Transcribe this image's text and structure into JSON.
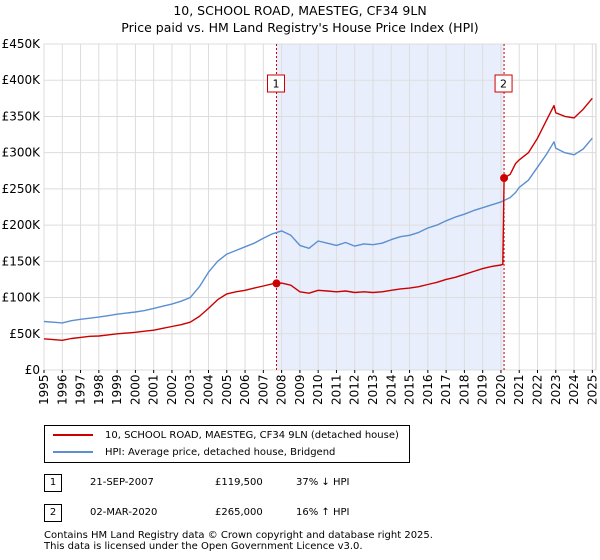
{
  "title": {
    "line1": "10, SCHOOL ROAD, MAESTEG, CF34 9LN",
    "line2": "Price paid vs. HM Land Registry's House Price Index (HPI)"
  },
  "chart_data": {
    "type": "line",
    "title": "10, SCHOOL ROAD, MAESTEG, CF34 9LN",
    "subtitle": "Price paid vs. HM Land Registry's House Price Index (HPI)",
    "xlabel": "",
    "ylabel": "",
    "xlim": [
      1995,
      2025.2
    ],
    "ylim": [
      0,
      450000
    ],
    "y_ticks": [
      {
        "value": 0,
        "label": "£0"
      },
      {
        "value": 50000,
        "label": "£50K"
      },
      {
        "value": 100000,
        "label": "£100K"
      },
      {
        "value": 150000,
        "label": "£150K"
      },
      {
        "value": 200000,
        "label": "£200K"
      },
      {
        "value": 250000,
        "label": "£250K"
      },
      {
        "value": 300000,
        "label": "£300K"
      },
      {
        "value": 350000,
        "label": "£350K"
      },
      {
        "value": 400000,
        "label": "£400K"
      },
      {
        "value": 450000,
        "label": "£450K"
      }
    ],
    "x_ticks": [
      "1995",
      "1996",
      "1997",
      "1998",
      "1999",
      "2000",
      "2001",
      "2002",
      "2003",
      "2004",
      "2005",
      "2006",
      "2007",
      "2008",
      "2009",
      "2010",
      "2011",
      "2012",
      "2013",
      "2014",
      "2015",
      "2016",
      "2017",
      "2018",
      "2019",
      "2020",
      "2021",
      "2022",
      "2023",
      "2024",
      "2025"
    ],
    "grid": true,
    "shaded_region": {
      "from": 2007.72,
      "to": 2020.17
    },
    "series": [
      {
        "name": "10, SCHOOL ROAD, MAESTEG, CF34 9LN (detached house)",
        "color": "#cc0000",
        "points": [
          [
            1995.0,
            43000
          ],
          [
            1995.5,
            42000
          ],
          [
            1996.0,
            41000
          ],
          [
            1996.5,
            43500
          ],
          [
            1997.0,
            45000
          ],
          [
            1997.5,
            46500
          ],
          [
            1998.0,
            47000
          ],
          [
            1998.5,
            48500
          ],
          [
            1999.0,
            50000
          ],
          [
            1999.5,
            51000
          ],
          [
            2000.0,
            52000
          ],
          [
            2000.5,
            53500
          ],
          [
            2001.0,
            55000
          ],
          [
            2001.5,
            57500
          ],
          [
            2002.0,
            60000
          ],
          [
            2002.5,
            62500
          ],
          [
            2003.0,
            66000
          ],
          [
            2003.5,
            74000
          ],
          [
            2004.0,
            85000
          ],
          [
            2004.5,
            97000
          ],
          [
            2005.0,
            105000
          ],
          [
            2005.5,
            108000
          ],
          [
            2006.0,
            110000
          ],
          [
            2006.5,
            113000
          ],
          [
            2007.0,
            116000
          ],
          [
            2007.5,
            119000
          ],
          [
            2007.72,
            119500
          ],
          [
            2008.0,
            120000
          ],
          [
            2008.5,
            117000
          ],
          [
            2009.0,
            108000
          ],
          [
            2009.5,
            106000
          ],
          [
            2010.0,
            110000
          ],
          [
            2010.5,
            109000
          ],
          [
            2011.0,
            108000
          ],
          [
            2011.5,
            109000
          ],
          [
            2012.0,
            107000
          ],
          [
            2012.5,
            108000
          ],
          [
            2013.0,
            107000
          ],
          [
            2013.5,
            108000
          ],
          [
            2014.0,
            110000
          ],
          [
            2014.5,
            112000
          ],
          [
            2015.0,
            113000
          ],
          [
            2015.5,
            115000
          ],
          [
            2016.0,
            118000
          ],
          [
            2016.5,
            121000
          ],
          [
            2017.0,
            125000
          ],
          [
            2017.5,
            128000
          ],
          [
            2018.0,
            132000
          ],
          [
            2018.5,
            136000
          ],
          [
            2019.0,
            140000
          ],
          [
            2019.5,
            143000
          ],
          [
            2020.0,
            145000
          ],
          [
            2020.1,
            146000
          ],
          [
            2020.17,
            265000
          ],
          [
            2020.5,
            270000
          ],
          [
            2020.8,
            285000
          ],
          [
            2021.0,
            290000
          ],
          [
            2021.5,
            300000
          ],
          [
            2022.0,
            320000
          ],
          [
            2022.5,
            345000
          ],
          [
            2022.9,
            365000
          ],
          [
            2023.0,
            355000
          ],
          [
            2023.5,
            350000
          ],
          [
            2024.0,
            348000
          ],
          [
            2024.5,
            360000
          ],
          [
            2025.0,
            375000
          ]
        ]
      },
      {
        "name": "HPI: Average price, detached house, Bridgend",
        "color": "#5b8fd0",
        "points": [
          [
            1995.0,
            67000
          ],
          [
            1995.5,
            66000
          ],
          [
            1996.0,
            65000
          ],
          [
            1996.5,
            68000
          ],
          [
            1997.0,
            70000
          ],
          [
            1997.5,
            71500
          ],
          [
            1998.0,
            73000
          ],
          [
            1998.5,
            75000
          ],
          [
            1999.0,
            77000
          ],
          [
            1999.5,
            78500
          ],
          [
            2000.0,
            80000
          ],
          [
            2000.5,
            82000
          ],
          [
            2001.0,
            85000
          ],
          [
            2001.5,
            88000
          ],
          [
            2002.0,
            91000
          ],
          [
            2002.5,
            95000
          ],
          [
            2003.0,
            100000
          ],
          [
            2003.5,
            115000
          ],
          [
            2004.0,
            135000
          ],
          [
            2004.5,
            150000
          ],
          [
            2005.0,
            160000
          ],
          [
            2005.5,
            165000
          ],
          [
            2006.0,
            170000
          ],
          [
            2006.5,
            175000
          ],
          [
            2007.0,
            182000
          ],
          [
            2007.5,
            188000
          ],
          [
            2008.0,
            192000
          ],
          [
            2008.5,
            186000
          ],
          [
            2009.0,
            172000
          ],
          [
            2009.5,
            168000
          ],
          [
            2010.0,
            178000
          ],
          [
            2010.5,
            175000
          ],
          [
            2011.0,
            172000
          ],
          [
            2011.5,
            176000
          ],
          [
            2012.0,
            171000
          ],
          [
            2012.5,
            174000
          ],
          [
            2013.0,
            173000
          ],
          [
            2013.5,
            175000
          ],
          [
            2014.0,
            180000
          ],
          [
            2014.5,
            184000
          ],
          [
            2015.0,
            186000
          ],
          [
            2015.5,
            190000
          ],
          [
            2016.0,
            196000
          ],
          [
            2016.5,
            200000
          ],
          [
            2017.0,
            206000
          ],
          [
            2017.5,
            211000
          ],
          [
            2018.0,
            215000
          ],
          [
            2018.5,
            220000
          ],
          [
            2019.0,
            224000
          ],
          [
            2019.5,
            228000
          ],
          [
            2020.0,
            232000
          ],
          [
            2020.5,
            238000
          ],
          [
            2020.8,
            245000
          ],
          [
            2021.0,
            252000
          ],
          [
            2021.5,
            262000
          ],
          [
            2022.0,
            280000
          ],
          [
            2022.5,
            298000
          ],
          [
            2022.9,
            315000
          ],
          [
            2023.0,
            306000
          ],
          [
            2023.5,
            300000
          ],
          [
            2024.0,
            297000
          ],
          [
            2024.5,
            305000
          ],
          [
            2025.0,
            320000
          ]
        ]
      }
    ],
    "annotations": [
      {
        "label": "1",
        "x": 2007.72,
        "y": 119500
      },
      {
        "label": "2",
        "x": 2020.17,
        "y": 265000
      }
    ]
  },
  "legend": {
    "items": [
      {
        "label": "10, SCHOOL ROAD, MAESTEG, CF34 9LN (detached house)",
        "color": "#cc0000"
      },
      {
        "label": "HPI: Average price, detached house, Bridgend",
        "color": "#5b8fd0"
      }
    ]
  },
  "transactions": [
    {
      "id": "1",
      "date": "21-SEP-2007",
      "price": "£119,500",
      "hpi": "37% ↓ HPI"
    },
    {
      "id": "2",
      "date": "02-MAR-2020",
      "price": "£265,000",
      "hpi": "16% ↑ HPI"
    }
  ],
  "footer": {
    "line1": "Contains HM Land Registry data © Crown copyright and database right 2025.",
    "line2": "This data is licensed under the Open Government Licence v3.0."
  }
}
